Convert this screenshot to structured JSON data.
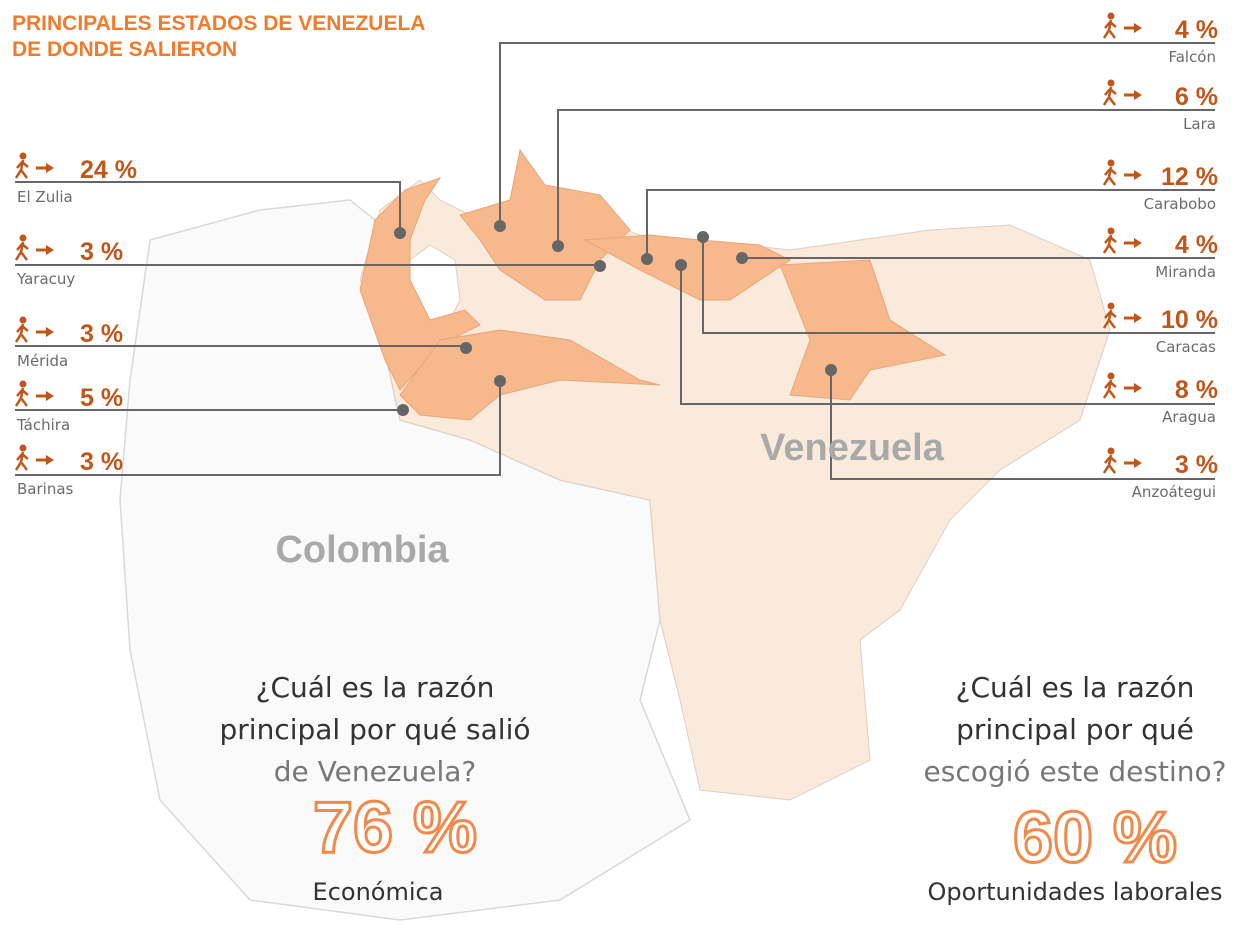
{
  "title_lines": [
    "PRINCIPALES ESTADOS DE VENEZUELA",
    "DE DONDE SALIERON"
  ],
  "states_left": [
    {
      "pct": "24 %",
      "name": "El Zulia"
    },
    {
      "pct": "3 %",
      "name": "Yaracuy"
    },
    {
      "pct": "3 %",
      "name": "Mérida"
    },
    {
      "pct": "5 %",
      "name": "Táchira"
    },
    {
      "pct": "3 %",
      "name": "Barinas"
    }
  ],
  "states_right": [
    {
      "pct": "4 %",
      "name": "Falcón"
    },
    {
      "pct": "6 %",
      "name": "Lara"
    },
    {
      "pct": "12 %",
      "name": "Carabobo"
    },
    {
      "pct": "4 %",
      "name": "Miranda"
    },
    {
      "pct": "10 %",
      "name": "Caracas"
    },
    {
      "pct": "8 %",
      "name": "Aragua"
    },
    {
      "pct": "3 %",
      "name": "Anzoátegui"
    }
  ],
  "countries": [
    "Colombia",
    "Venezuela"
  ],
  "questions": [
    {
      "lines": [
        "¿Cuál es la razón",
        "principal por qué salió",
        "de Venezuela?"
      ],
      "value": "76 %",
      "answer": "Económica"
    },
    {
      "lines": [
        "¿Cuál es la razón",
        "principal por qué",
        "escogió este destino?"
      ],
      "value": "60 %",
      "answer": "Oportunidades laborales"
    }
  ]
}
